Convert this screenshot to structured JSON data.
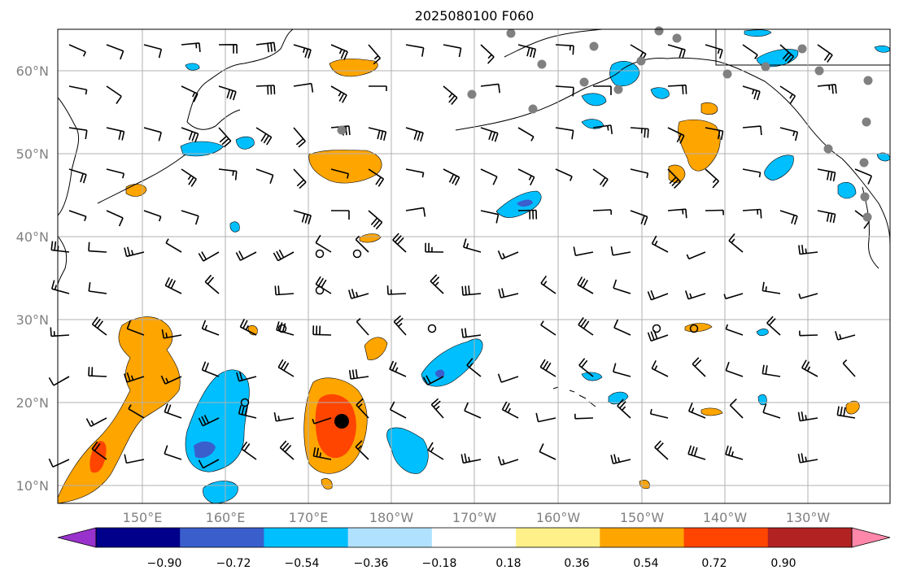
{
  "title": "2025080100 F060",
  "lat_labels": [
    "60°N",
    "50°N",
    "40°N",
    "30°N",
    "20°N",
    "10°N"
  ],
  "lon_labels": [
    "150°E",
    "160°E",
    "170°E",
    "180°W",
    "170°W",
    "160°W",
    "150°W",
    "140°W",
    "130°W"
  ],
  "colorbar": {
    "colors": [
      "#9932cc",
      "#00008b",
      "#3a5fcd",
      "#00bfff",
      "#b0e2ff",
      "#ffffff",
      "#fff08a",
      "#ffa500",
      "#ff4500",
      "#b22222",
      "#ff88aa"
    ],
    "tick_labels": [
      "−0.90",
      "−0.72",
      "−0.54",
      "−0.36",
      "−0.18",
      "0.18",
      "0.36",
      "0.54",
      "0.72",
      "0.90"
    ]
  },
  "colors": {
    "positive_mid": "#ffa500",
    "positive_high": "#ff4500",
    "negative_mid": "#00bfff",
    "negative_high": "#3a5fcd",
    "grid": "#b0b0b0",
    "station_dot": "#808080"
  }
}
